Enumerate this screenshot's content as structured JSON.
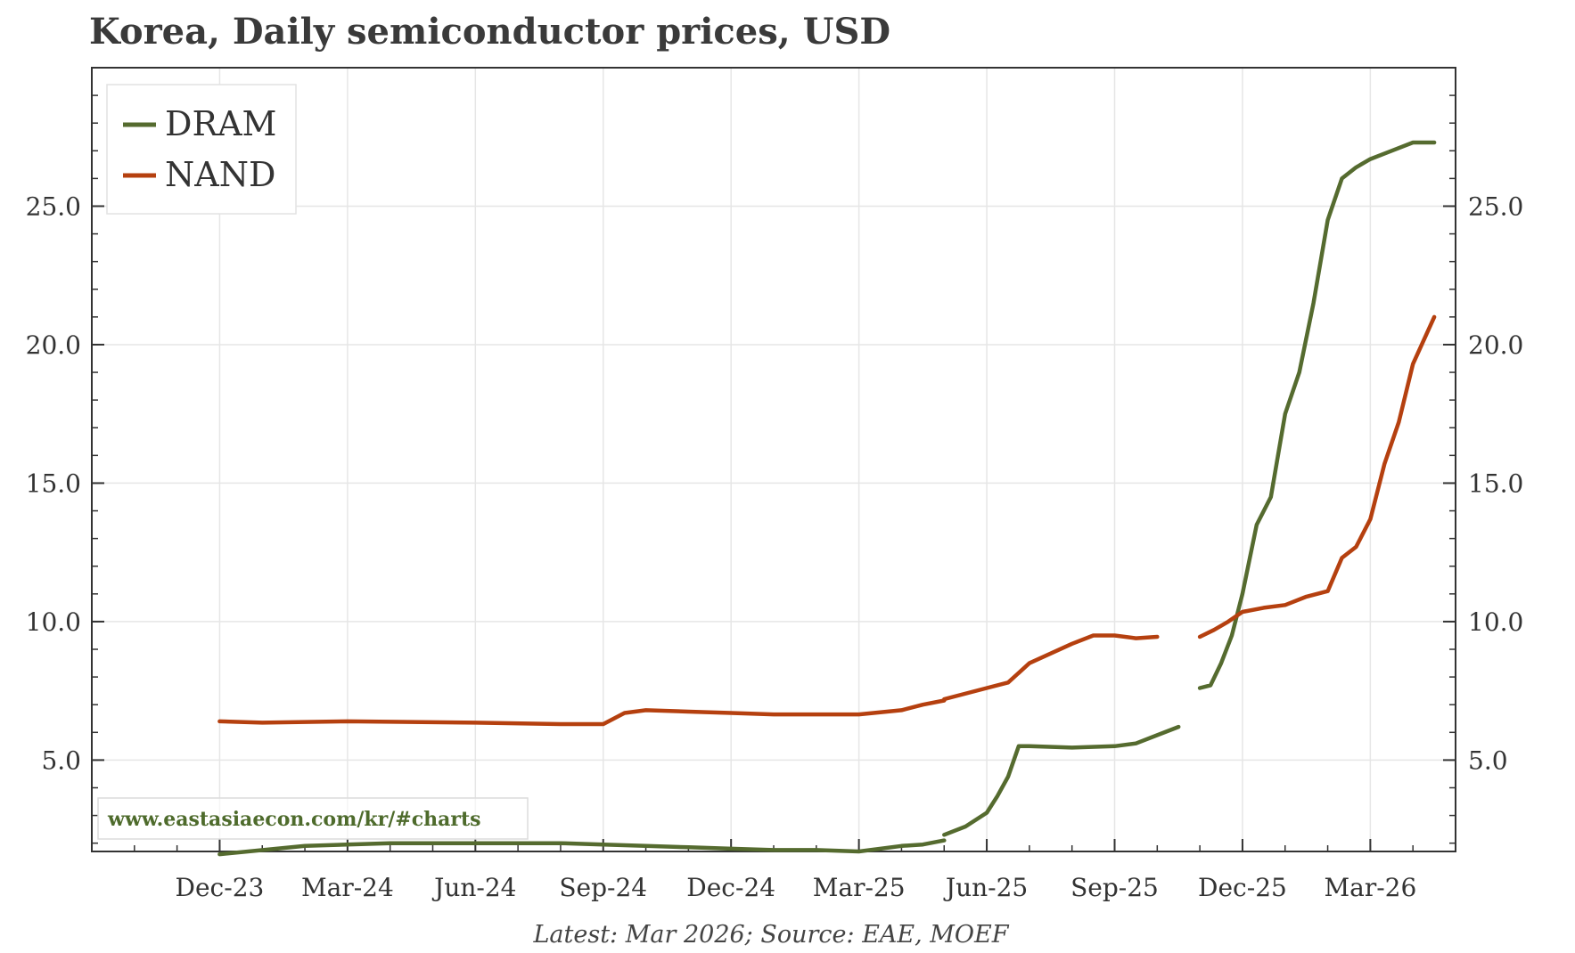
{
  "title": "Korea, Daily semiconductor prices, USD",
  "footer": "Latest: Mar 2026; Source: EAE, MOEF",
  "watermark": "www.eastasiaecon.com/kr/#charts",
  "colors": {
    "DRAM": "#556b2f",
    "NAND": "#b5400f",
    "grid": "#e6e6e6",
    "axis": "#333333"
  },
  "chart_data": {
    "type": "line",
    "title": "Korea, Daily semiconductor prices, USD",
    "xlabel": "",
    "ylabel": "",
    "x_ticks": [
      "Dec-23",
      "Mar-24",
      "Jun-24",
      "Sep-24",
      "Dec-24",
      "Mar-25",
      "Jun-25",
      "Sep-25",
      "Dec-25",
      "Mar-26"
    ],
    "y_ticks": [
      "5.0",
      "10.0",
      "15.0",
      "20.0",
      "25.0"
    ],
    "ylim": [
      1.7,
      30.0
    ],
    "xlim_months": [
      "Sep-23",
      "May-26"
    ],
    "grid": true,
    "legend": "top-left",
    "secondary_y_axis": "mirrors left axis",
    "series": [
      {
        "name": "DRAM",
        "segments": [
          [
            [
              "Dec-23",
              1.6
            ],
            [
              "Feb-24",
              1.9
            ],
            [
              "Apr-24",
              2.0
            ],
            [
              "Jun-24",
              2.0
            ],
            [
              "Aug-24",
              2.0
            ],
            [
              "Sep-24",
              1.95
            ],
            [
              "Oct-24",
              1.9
            ],
            [
              "Nov-24",
              1.85
            ],
            [
              "Dec-24",
              1.8
            ],
            [
              "Jan-25",
              1.75
            ],
            [
              "Feb-25",
              1.75
            ],
            [
              "Mar-25",
              1.7
            ],
            [
              "Apr-25",
              1.9
            ],
            [
              "Apr-25",
              1.95
            ],
            [
              "May-25",
              2.1
            ]
          ],
          [
            [
              "May-25",
              2.3
            ],
            [
              "May-25",
              2.6
            ],
            [
              "Jun-25",
              3.1
            ],
            [
              "Jun-25",
              3.7
            ],
            [
              "Jun-25",
              4.4
            ],
            [
              "Jun-25",
              5.5
            ],
            [
              "Jul-25",
              5.5
            ],
            [
              "Aug-25",
              5.45
            ],
            [
              "Sep-25",
              5.5
            ],
            [
              "Sep-25",
              5.6
            ],
            [
              "Oct-25",
              5.9
            ],
            [
              "Oct-25",
              6.2
            ]
          ],
          [
            [
              "Nov-25",
              7.6
            ],
            [
              "Nov-25",
              7.7
            ],
            [
              "Nov-25",
              8.5
            ],
            [
              "Nov-25",
              9.5
            ],
            [
              "Dec-25",
              11.0
            ],
            [
              "Dec-25",
              13.5
            ],
            [
              "Dec-25",
              14.5
            ],
            [
              "Jan-26",
              17.5
            ],
            [
              "Jan-26",
              19.0
            ],
            [
              "Jan-26",
              21.5
            ],
            [
              "Feb-26",
              24.5
            ],
            [
              "Feb-26",
              26.0
            ],
            [
              "Feb-26",
              26.4
            ],
            [
              "Mar-26",
              26.7
            ],
            [
              "Mar-26",
              27.0
            ],
            [
              "Apr-26",
              27.3
            ],
            [
              "Apr-26",
              27.3
            ]
          ]
        ]
      },
      {
        "name": "NAND",
        "segments": [
          [
            [
              "Dec-23",
              6.4
            ],
            [
              "Jan-24",
              6.35
            ],
            [
              "Mar-24",
              6.4
            ],
            [
              "Jun-24",
              6.35
            ],
            [
              "Aug-24",
              6.3
            ],
            [
              "Sep-24",
              6.3
            ],
            [
              "Sep-24",
              6.7
            ],
            [
              "Oct-24",
              6.8
            ],
            [
              "Nov-24",
              6.75
            ],
            [
              "Dec-24",
              6.7
            ],
            [
              "Jan-25",
              6.65
            ],
            [
              "Mar-25",
              6.65
            ],
            [
              "Apr-25",
              6.8
            ],
            [
              "Apr-25",
              7.0
            ],
            [
              "May-25",
              7.15
            ]
          ],
          [
            [
              "May-25",
              7.2
            ],
            [
              "Jun-25",
              7.6
            ],
            [
              "Jun-25",
              7.8
            ],
            [
              "Jul-25",
              8.5
            ],
            [
              "Aug-25",
              9.2
            ],
            [
              "Aug-25",
              9.5
            ],
            [
              "Sep-25",
              9.5
            ],
            [
              "Sep-25",
              9.4
            ],
            [
              "Oct-25",
              9.45
            ]
          ],
          [
            [
              "Nov-25",
              9.45
            ],
            [
              "Nov-25",
              9.7
            ],
            [
              "Nov-25",
              10.0
            ],
            [
              "Dec-25",
              10.35
            ],
            [
              "Dec-25",
              10.5
            ],
            [
              "Jan-26",
              10.6
            ],
            [
              "Jan-26",
              10.9
            ],
            [
              "Feb-26",
              11.1
            ],
            [
              "Feb-26",
              12.3
            ],
            [
              "Feb-26",
              12.7
            ],
            [
              "Mar-26",
              13.7
            ],
            [
              "Mar-26",
              15.7
            ],
            [
              "Mar-26",
              17.2
            ],
            [
              "Apr-26",
              19.3
            ],
            [
              "Apr-26",
              21.0
            ]
          ]
        ]
      }
    ]
  }
}
